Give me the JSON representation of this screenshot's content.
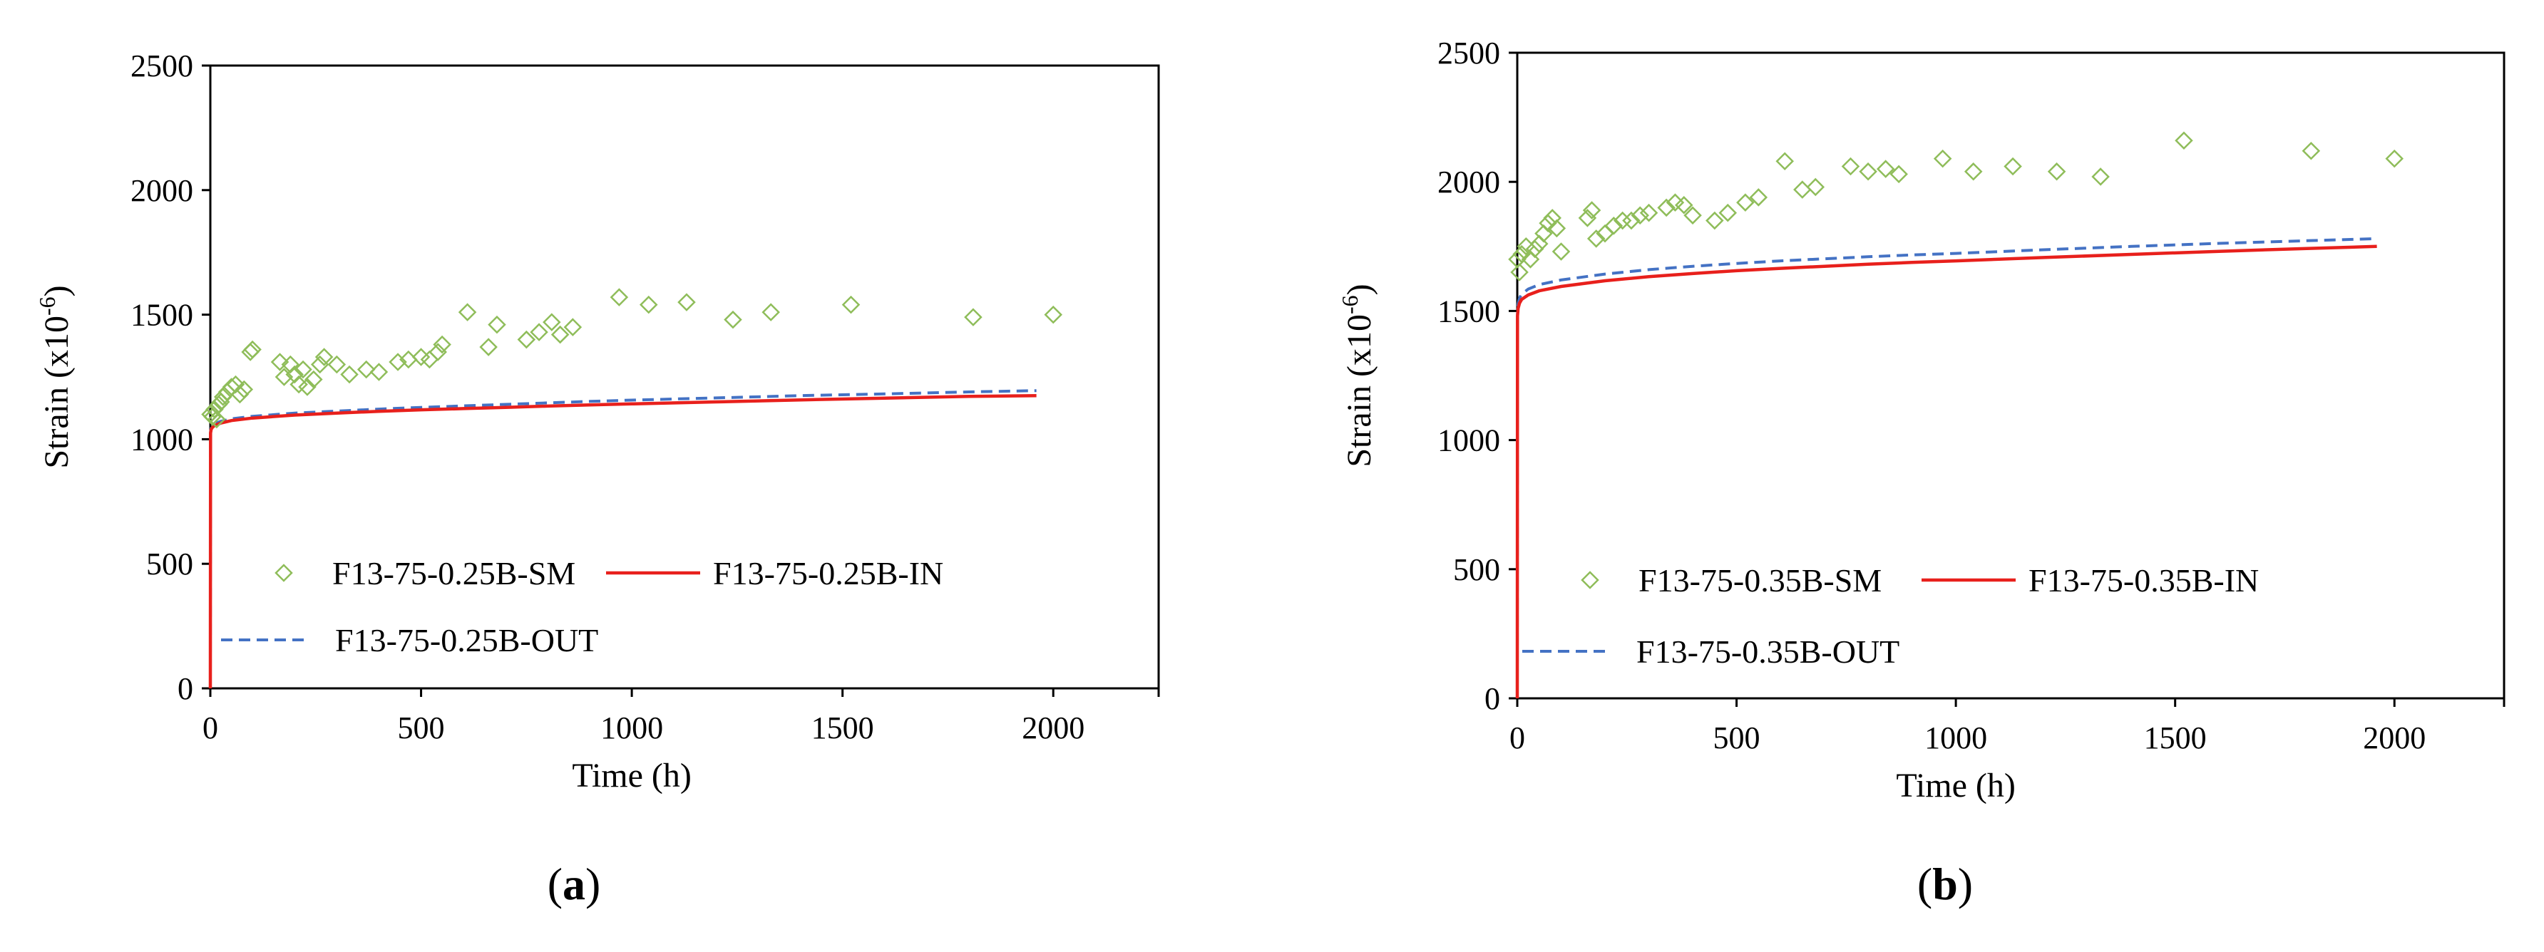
{
  "chart_data": [
    {
      "type": "scatter",
      "panel_label": "(a)",
      "panel_letter": "a",
      "xlabel": "Time (h)",
      "ylabel": "Strain  (x10-6)",
      "ylabel_base": "Strain  (x10",
      "ylabel_exp": "-6",
      "xlim": [
        0,
        2250
      ],
      "ylim": [
        0,
        2500
      ],
      "xticks": [
        0,
        500,
        1000,
        1500,
        2000
      ],
      "yticks": [
        0,
        500,
        1000,
        1500,
        2000,
        2500
      ],
      "grid": false,
      "legend_position": "lower-right",
      "colors": {
        "SM": "#8fbd5a",
        "IN": "#e8201c",
        "OUT": "#4472c4"
      },
      "series": [
        {
          "name": "F13-75-0.25B-SM",
          "style": "markers",
          "x": [
            0,
            5,
            10,
            15,
            20,
            25,
            30,
            40,
            50,
            60,
            70,
            80,
            95,
            100,
            165,
            175,
            190,
            200,
            210,
            220,
            230,
            245,
            260,
            270,
            300,
            330,
            370,
            400,
            445,
            470,
            500,
            520,
            540,
            550,
            610,
            660,
            680,
            750,
            780,
            810,
            830,
            860,
            970,
            1040,
            1130,
            1240,
            1330,
            1520,
            1810,
            2000
          ],
          "y": [
            1100,
            1090,
            1120,
            1080,
            1140,
            1150,
            1170,
            1190,
            1210,
            1220,
            1180,
            1200,
            1350,
            1360,
            1310,
            1250,
            1300,
            1260,
            1220,
            1280,
            1210,
            1240,
            1300,
            1330,
            1300,
            1260,
            1280,
            1270,
            1310,
            1320,
            1330,
            1320,
            1350,
            1380,
            1510,
            1370,
            1460,
            1400,
            1430,
            1470,
            1420,
            1450,
            1570,
            1540,
            1550,
            1480,
            1510,
            1540,
            1490,
            1500
          ]
        },
        {
          "name": "F13-75-0.25B-IN",
          "style": "solid",
          "x": [
            0,
            0.5,
            2,
            5,
            10,
            25,
            50,
            100,
            200,
            300,
            400,
            500,
            600,
            700,
            800,
            900,
            1000,
            1200,
            1400,
            1600,
            1800,
            1960
          ],
          "y": [
            0,
            1025,
            1040,
            1048,
            1055,
            1065,
            1075,
            1085,
            1097,
            1105,
            1112,
            1118,
            1123,
            1128,
            1133,
            1138,
            1142,
            1150,
            1158,
            1165,
            1172,
            1175
          ]
        },
        {
          "name": "F13-75-0.25B-OUT",
          "style": "dashed",
          "x": [
            0,
            0.5,
            2,
            5,
            10,
            25,
            50,
            100,
            200,
            300,
            400,
            500,
            600,
            700,
            800,
            900,
            1000,
            1200,
            1400,
            1600,
            1800,
            1960
          ],
          "y": [
            0,
            1030,
            1045,
            1055,
            1062,
            1072,
            1082,
            1092,
            1105,
            1113,
            1121,
            1128,
            1134,
            1140,
            1146,
            1152,
            1157,
            1166,
            1175,
            1182,
            1190,
            1195
          ]
        }
      ]
    },
    {
      "type": "scatter",
      "panel_label": "(b)",
      "panel_letter": "b",
      "xlabel": "Time (h)",
      "ylabel": "Strain  (x10-6)",
      "ylabel_base": "Strain  (x10",
      "ylabel_exp": "-6",
      "xlim": [
        0,
        2250
      ],
      "ylim": [
        0,
        2500
      ],
      "xticks": [
        0,
        500,
        1000,
        1500,
        2000
      ],
      "yticks": [
        0,
        500,
        1000,
        1500,
        2000,
        2500
      ],
      "grid": false,
      "legend_position": "lower-right",
      "colors": {
        "SM": "#8fbd5a",
        "IN": "#e8201c",
        "OUT": "#4472c4"
      },
      "series": [
        {
          "name": "F13-75-0.35B-SM",
          "style": "markers",
          "x": [
            0,
            5,
            10,
            20,
            30,
            40,
            50,
            60,
            70,
            80,
            90,
            100,
            160,
            170,
            180,
            200,
            220,
            240,
            260,
            280,
            300,
            340,
            360,
            380,
            400,
            450,
            480,
            520,
            550,
            610,
            650,
            680,
            760,
            800,
            840,
            870,
            970,
            1040,
            1130,
            1230,
            1330,
            1520,
            1810,
            2000
          ],
          "y": [
            1700,
            1650,
            1720,
            1750,
            1700,
            1740,
            1760,
            1800,
            1840,
            1860,
            1820,
            1730,
            1860,
            1890,
            1780,
            1800,
            1830,
            1850,
            1850,
            1870,
            1880,
            1900,
            1920,
            1910,
            1870,
            1850,
            1880,
            1920,
            1940,
            2080,
            1970,
            1980,
            2060,
            2040,
            2050,
            2030,
            2090,
            2040,
            2060,
            2040,
            2020,
            2160,
            2120,
            2090
          ]
        },
        {
          "name": "F13-75-0.35B-IN",
          "style": "solid",
          "x": [
            0,
            0.5,
            2,
            5,
            10,
            25,
            50,
            100,
            200,
            300,
            400,
            500,
            600,
            700,
            800,
            900,
            1000,
            1200,
            1400,
            1600,
            1800,
            1960
          ],
          "y": [
            0,
            1480,
            1510,
            1530,
            1545,
            1562,
            1578,
            1595,
            1617,
            1633,
            1645,
            1656,
            1665,
            1673,
            1681,
            1688,
            1694,
            1707,
            1719,
            1731,
            1742,
            1750
          ]
        },
        {
          "name": "F13-75-0.35B-OUT",
          "style": "dashed",
          "x": [
            0,
            0.5,
            2,
            5,
            10,
            25,
            50,
            100,
            200,
            300,
            400,
            500,
            600,
            700,
            800,
            900,
            1000,
            1200,
            1400,
            1600,
            1800,
            1960
          ],
          "y": [
            0,
            1495,
            1528,
            1550,
            1565,
            1585,
            1602,
            1620,
            1643,
            1660,
            1673,
            1684,
            1694,
            1702,
            1710,
            1717,
            1723,
            1737,
            1750,
            1762,
            1772,
            1780
          ]
        }
      ]
    }
  ]
}
